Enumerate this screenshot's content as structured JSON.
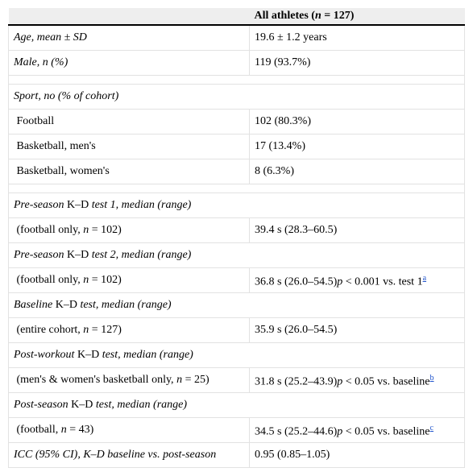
{
  "header": [
    [],
    [
      {
        "text": "All athletes ("
      },
      {
        "text": "n",
        "italic": true
      },
      {
        "text": " = 127)"
      }
    ]
  ],
  "groups": [
    [
      [
        [
          {
            "text": "Age, mean ± SD",
            "italic": true
          }
        ],
        [
          {
            "text": "19.6 ± 1.2 years"
          }
        ]
      ],
      [
        [
          {
            "text": "Male, n (%)",
            "italic": true
          }
        ],
        [
          {
            "text": "119 (93.7%)"
          }
        ]
      ]
    ],
    [
      [
        [
          {
            "text": "Sport, no (% of cohort)",
            "italic": true
          }
        ]
      ],
      [
        [
          {
            "text": " Football"
          }
        ],
        [
          {
            "text": "102 (80.3%)"
          }
        ]
      ],
      [
        [
          {
            "text": " Basketball, men's"
          }
        ],
        [
          {
            "text": "17 (13.4%)"
          }
        ]
      ],
      [
        [
          {
            "text": " Basketball, women's"
          }
        ],
        [
          {
            "text": "8 (6.3%)"
          }
        ]
      ]
    ],
    [
      [
        [
          {
            "text": "Pre-season",
            "italic": true
          },
          {
            "text": " K–D "
          },
          {
            "text": "test 1, median (range)",
            "italic": true
          }
        ]
      ],
      [
        [
          {
            "text": " (football only, "
          },
          {
            "text": "n",
            "italic": true
          },
          {
            "text": " = 102)"
          }
        ],
        [
          {
            "text": "39.4 s (28.3–60.5)"
          }
        ]
      ],
      [
        [
          {
            "text": "Pre-season",
            "italic": true
          },
          {
            "text": " K–D "
          },
          {
            "text": "test 2, median (range)",
            "italic": true
          }
        ]
      ],
      [
        [
          {
            "text": " (football only, "
          },
          {
            "text": "n",
            "italic": true
          },
          {
            "text": " = 102)"
          }
        ],
        [
          {
            "text": "36.8 s (26.0–54.5)"
          },
          {
            "text": "p",
            "italic": true
          },
          {
            "text": " < 0.001 vs. test 1"
          },
          {
            "text": "a",
            "sup": true
          }
        ]
      ],
      [
        [
          {
            "text": "Baseline",
            "italic": true
          },
          {
            "text": " K–D "
          },
          {
            "text": "test, median (range)",
            "italic": true
          }
        ]
      ],
      [
        [
          {
            "text": " (entire cohort, "
          },
          {
            "text": "n",
            "italic": true
          },
          {
            "text": " = 127)"
          }
        ],
        [
          {
            "text": "35.9 s (26.0–54.5)"
          }
        ]
      ],
      [
        [
          {
            "text": "Post-workout",
            "italic": true
          },
          {
            "text": " K–D "
          },
          {
            "text": "test, median (range)",
            "italic": true
          }
        ]
      ],
      [
        [
          {
            "text": " (men's & women's basketball only, "
          },
          {
            "text": "n",
            "italic": true
          },
          {
            "text": " = 25)"
          }
        ],
        [
          {
            "text": "31.8 s (25.2–43.9)"
          },
          {
            "text": "p",
            "italic": true
          },
          {
            "text": " < 0.05 vs. baseline"
          },
          {
            "text": "b",
            "sup": true
          }
        ]
      ],
      [
        [
          {
            "text": "Post-season",
            "italic": true
          },
          {
            "text": " K–D "
          },
          {
            "text": "test, median (range)",
            "italic": true
          }
        ]
      ],
      [
        [
          {
            "text": " (football, "
          },
          {
            "text": "n",
            "italic": true
          },
          {
            "text": " = 43)"
          }
        ],
        [
          {
            "text": "34.5 s (25.2–44.6)"
          },
          {
            "text": "p",
            "italic": true
          },
          {
            "text": " < 0.05 vs. baseline"
          },
          {
            "text": "c",
            "sup": true
          }
        ]
      ],
      [
        [
          {
            "text": "ICC (95% CI), K–D baseline vs. post-season",
            "italic": true
          }
        ],
        [
          {
            "text": "0.95 (0.85–1.05)"
          }
        ]
      ]
    ]
  ]
}
